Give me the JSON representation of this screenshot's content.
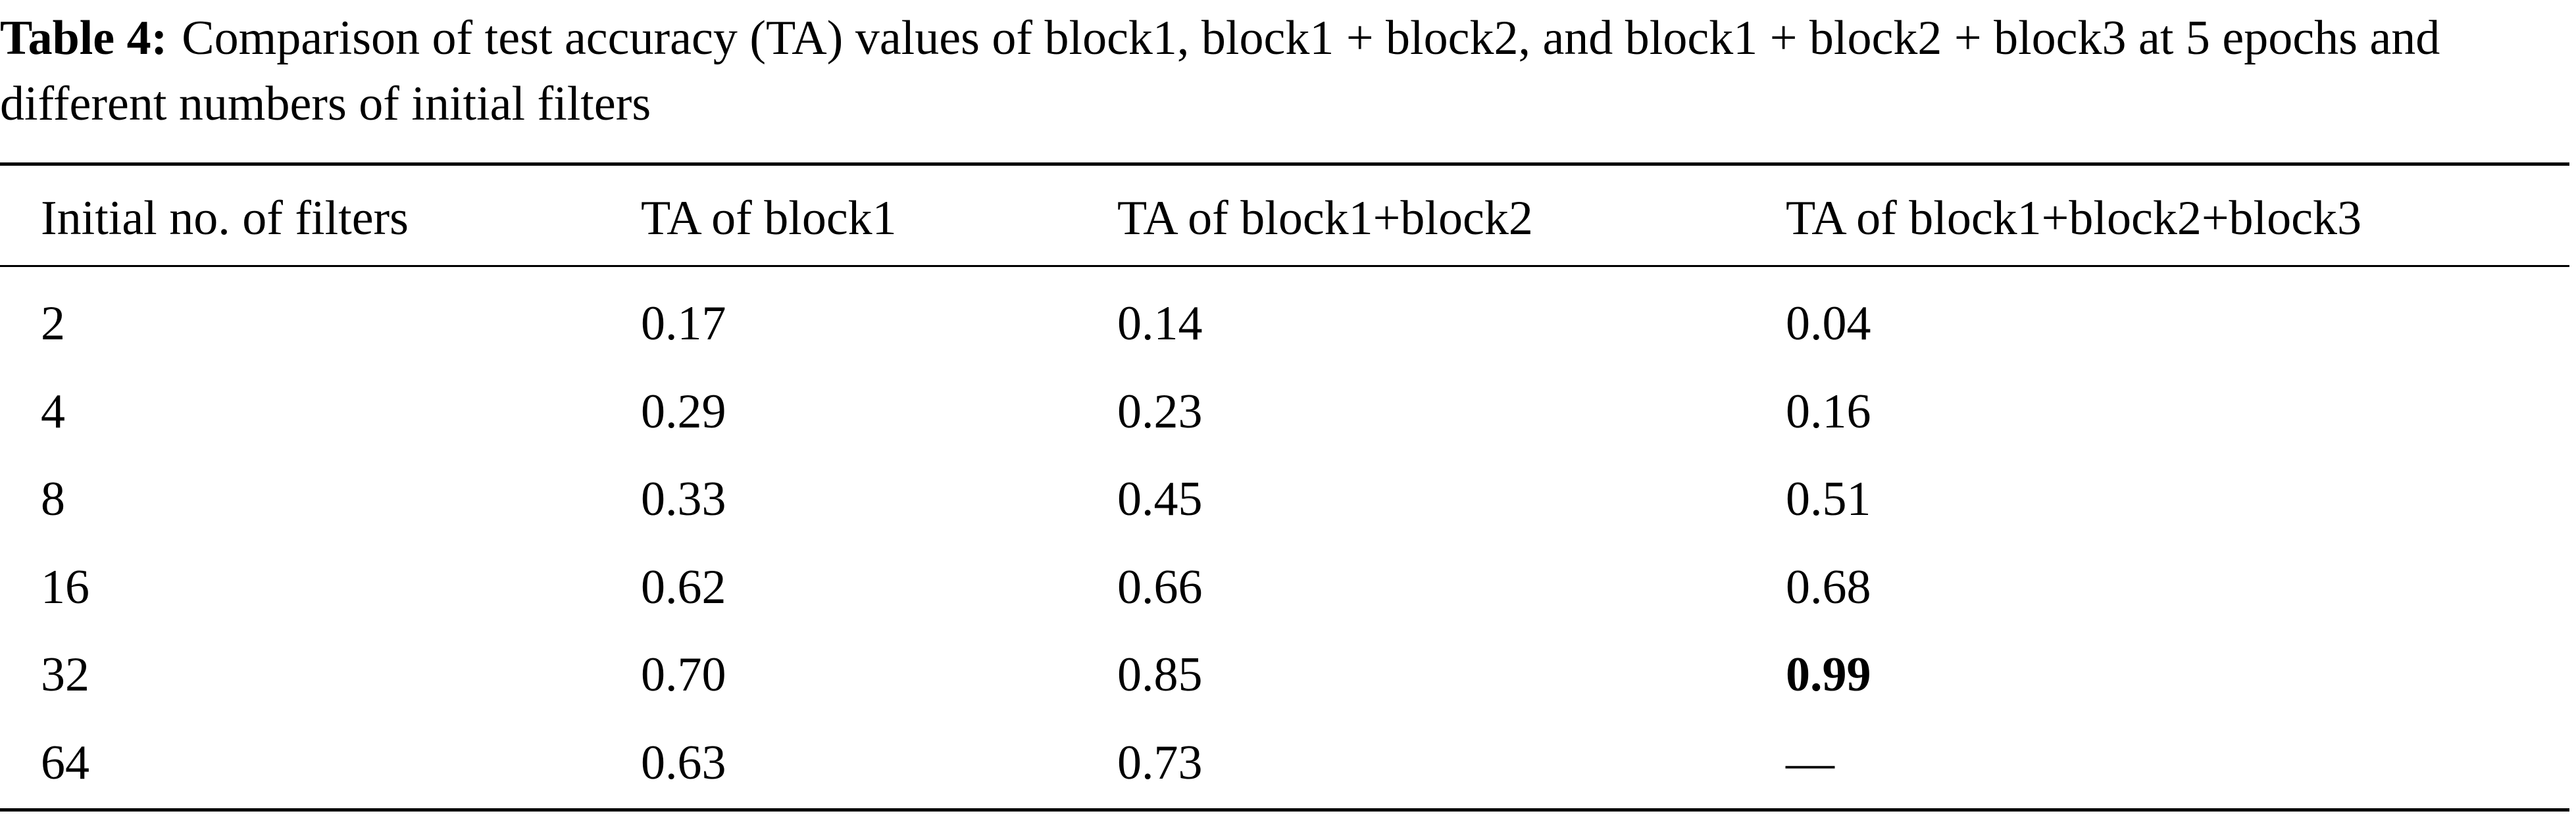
{
  "caption": {
    "label": "Table 4:",
    "text": "Comparison of test accuracy (TA) values of block1, block1 + block2, and block1 + block2 + block3 at 5 epochs and different numbers of initial filters"
  },
  "table": {
    "header": [
      "Initial no. of filters",
      "TA of block1",
      "TA of block1+block2",
      "TA of block1+block2+block3"
    ],
    "rows": [
      [
        "2",
        "0.17",
        "0.14",
        "0.04"
      ],
      [
        "4",
        "0.29",
        "0.23",
        "0.16"
      ],
      [
        "8",
        "0.33",
        "0.45",
        "0.51"
      ],
      [
        "16",
        "0.62",
        "0.66",
        "0.68"
      ],
      [
        "32",
        "0.70",
        "0.85",
        "0.99"
      ],
      [
        "64",
        "0.63",
        "0.73",
        "—"
      ]
    ]
  }
}
